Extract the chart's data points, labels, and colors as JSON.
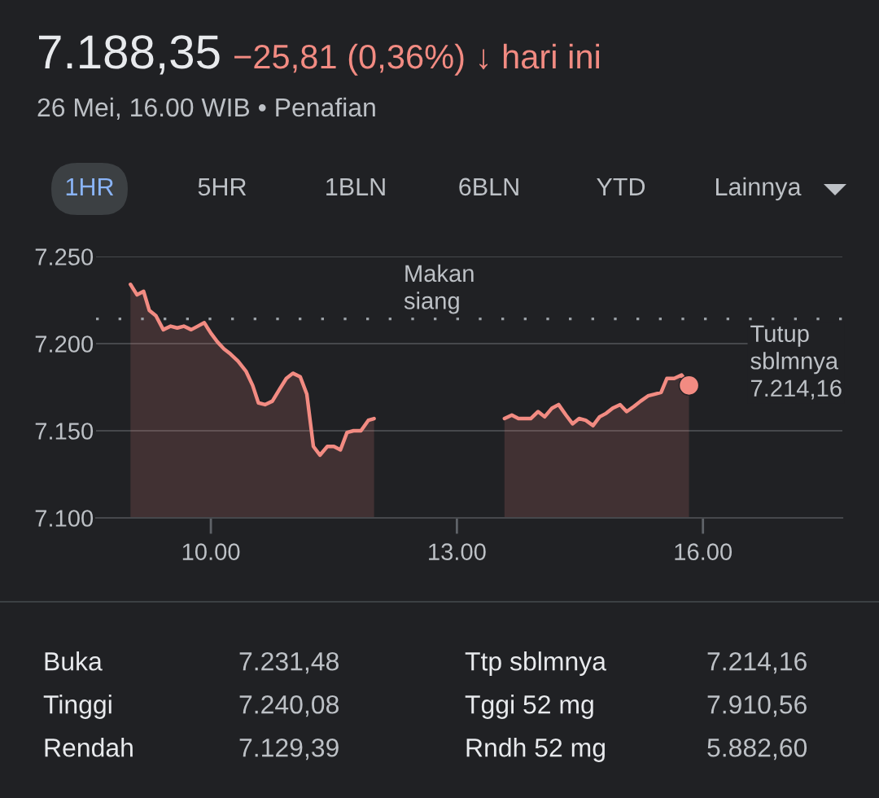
{
  "chart_data": {
    "type": "area",
    "title": "7.188,35",
    "subtitle": "−25,81 (0,36%) ↓ hari ini",
    "annotations": [
      "26 Mei, 16.00 WIB • Penafian",
      "1HR",
      "5HR",
      "1BLN",
      "6BLN",
      "YTD",
      "Lainnya",
      "Makan siang",
      "Buka",
      "7.231,48",
      "Ttp sblmnya",
      "7.214,16",
      "Tinggi",
      "7.240,08",
      "Tggi 52 mg",
      "7.910,56",
      "Rendah",
      "7.129,39",
      "Rndh 52 mg",
      "5.882,60"
    ],
    "series": [
      {
        "color": "#f28b82",
        "x": [
          9.02,
          9.1,
          9.18,
          9.25,
          9.33,
          9.42,
          9.51,
          9.59,
          9.67,
          9.76,
          9.84,
          9.92,
          10.0,
          10.08,
          10.16,
          10.24,
          10.33,
          10.43,
          10.51,
          10.58,
          10.66,
          10.75,
          10.84,
          10.92,
          11.0,
          11.09,
          11.17,
          11.25,
          11.33,
          11.42,
          11.5,
          11.58,
          11.66,
          11.74,
          11.83,
          11.92,
          11.99
        ],
        "values": [
          7234,
          7228,
          7230,
          7219,
          7216,
          7208,
          7210,
          7209,
          7210,
          7208,
          7210,
          7212,
          7206,
          7201,
          7197,
          7194,
          7190,
          7184,
          7176,
          7166,
          7165,
          7167,
          7174,
          7180,
          7183,
          7181,
          7171,
          7141,
          7136,
          7141,
          7141,
          7139,
          7149,
          7150,
          7150,
          7156,
          7157
        ]
      },
      {
        "color": "#f28b82",
        "x": [
          13.58,
          13.67,
          13.75,
          13.9,
          13.99,
          14.07,
          14.16,
          14.24,
          14.33,
          14.41,
          14.49,
          14.57,
          14.66,
          14.74,
          14.82,
          14.9,
          14.99,
          15.07,
          15.16,
          15.24,
          15.33,
          15.41,
          15.49,
          15.56,
          15.65,
          15.74,
          15.83
        ],
        "values": [
          7157,
          7159,
          7157,
          7157,
          7161,
          7158,
          7163,
          7165,
          7159,
          7154,
          7157,
          7156,
          7153,
          7158,
          7160,
          7163,
          7165,
          7161,
          7164,
          7167,
          7170,
          7171,
          7172,
          7180,
          7180,
          7182,
          7176
        ]
      },
      {
        "type": "scatter",
        "color": "#f28b82",
        "x": [
          15.83
        ],
        "values": [
          7176
        ]
      }
    ],
    "xlim": [
      8.6,
      17.7
    ],
    "xticks": [
      {
        "value": 10,
        "label": "10.00"
      },
      {
        "value": 13,
        "label": "13.00"
      },
      {
        "value": 16,
        "label": "16.00"
      }
    ],
    "ylim": [
      7100,
      7250
    ],
    "yticks": [
      {
        "value": 7100,
        "label": "7.100"
      },
      {
        "value": 7150,
        "label": "7.150"
      },
      {
        "value": 7200,
        "label": "7.200"
      },
      {
        "value": 7250,
        "label": "7.250"
      }
    ],
    "ref_lines": [
      {
        "axis": "y",
        "value": 7214.16,
        "label": "Tutup sblmnya 7.214,16",
        "color": "#9aa0a6",
        "line_style": "dotted"
      }
    ],
    "grid": "y"
  }
}
